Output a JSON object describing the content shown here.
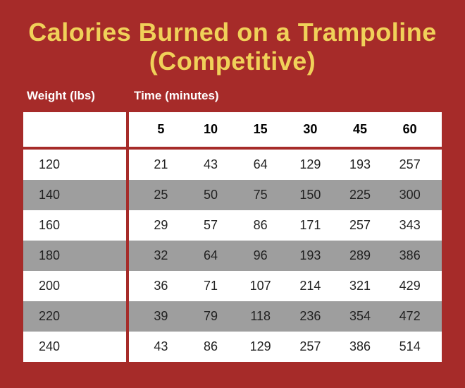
{
  "title_line1": "Calories Burned on a Trampoline",
  "title_line2": "(Competitive)",
  "header_weight": "Weight (lbs)",
  "header_time": "Time (minutes)",
  "time_columns": [
    "5",
    "10",
    "15",
    "30",
    "45",
    "60"
  ],
  "rows": [
    {
      "weight": "120",
      "values": [
        "21",
        "43",
        "64",
        "129",
        "193",
        "257"
      ],
      "alt": false
    },
    {
      "weight": "140",
      "values": [
        "25",
        "50",
        "75",
        "150",
        "225",
        "300"
      ],
      "alt": true
    },
    {
      "weight": "160",
      "values": [
        "29",
        "57",
        "86",
        "171",
        "257",
        "343"
      ],
      "alt": false
    },
    {
      "weight": "180",
      "values": [
        "32",
        "64",
        "96",
        "193",
        "289",
        "386"
      ],
      "alt": true
    },
    {
      "weight": "200",
      "values": [
        "36",
        "71",
        "107",
        "214",
        "321",
        "429"
      ],
      "alt": false
    },
    {
      "weight": "220",
      "values": [
        "39",
        "79",
        "118",
        "236",
        "354",
        "472"
      ],
      "alt": true
    },
    {
      "weight": "240",
      "values": [
        "43",
        "86",
        "129",
        "257",
        "386",
        "514"
      ],
      "alt": false
    }
  ],
  "colors": {
    "background": "#a62b29",
    "title": "#f0d159",
    "header_text": "#ffffff",
    "cell_bg": "#ffffff",
    "alt_bg": "#9e9e9e",
    "text": "#222222"
  },
  "type": "table"
}
